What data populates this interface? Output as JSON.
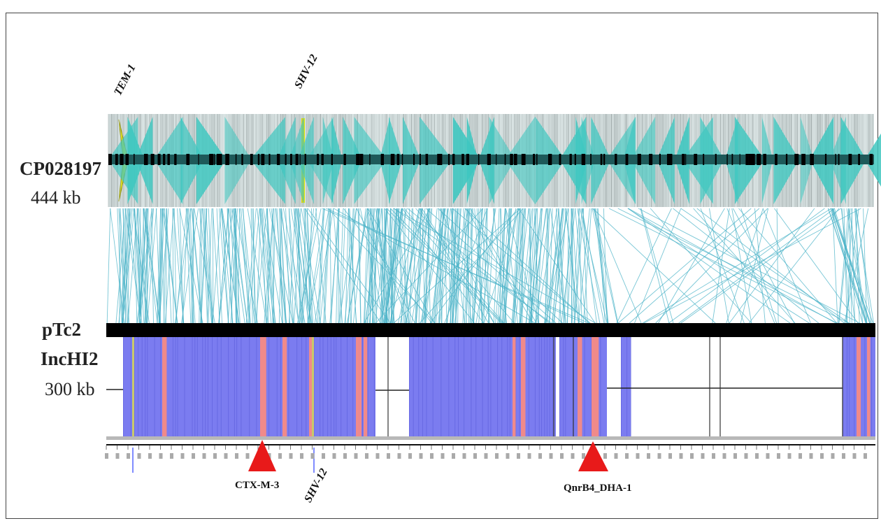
{
  "figure": {
    "top_genome": {
      "name": "CP028197",
      "size": "444 kb"
    },
    "bottom_plasmid": {
      "name": "pTc2",
      "incgroup": "IncHI2",
      "size": "300 kb"
    },
    "top_gene_labels": [
      "TEM-1",
      "SHV-12"
    ],
    "bottom_markers": [
      {
        "label": "CTX-M-3"
      },
      {
        "label": "SHV-12"
      },
      {
        "label": "QnrB4_DHA-1"
      }
    ],
    "colors": {
      "arrows": "#3fc7c0",
      "links": "#4bb3c8",
      "coverage": "#7b7cf0",
      "coverage_hit": "#f08a8a",
      "highlight_gene": "#f2f20a",
      "marker": "#e81a1a",
      "bar": "#000000"
    }
  }
}
